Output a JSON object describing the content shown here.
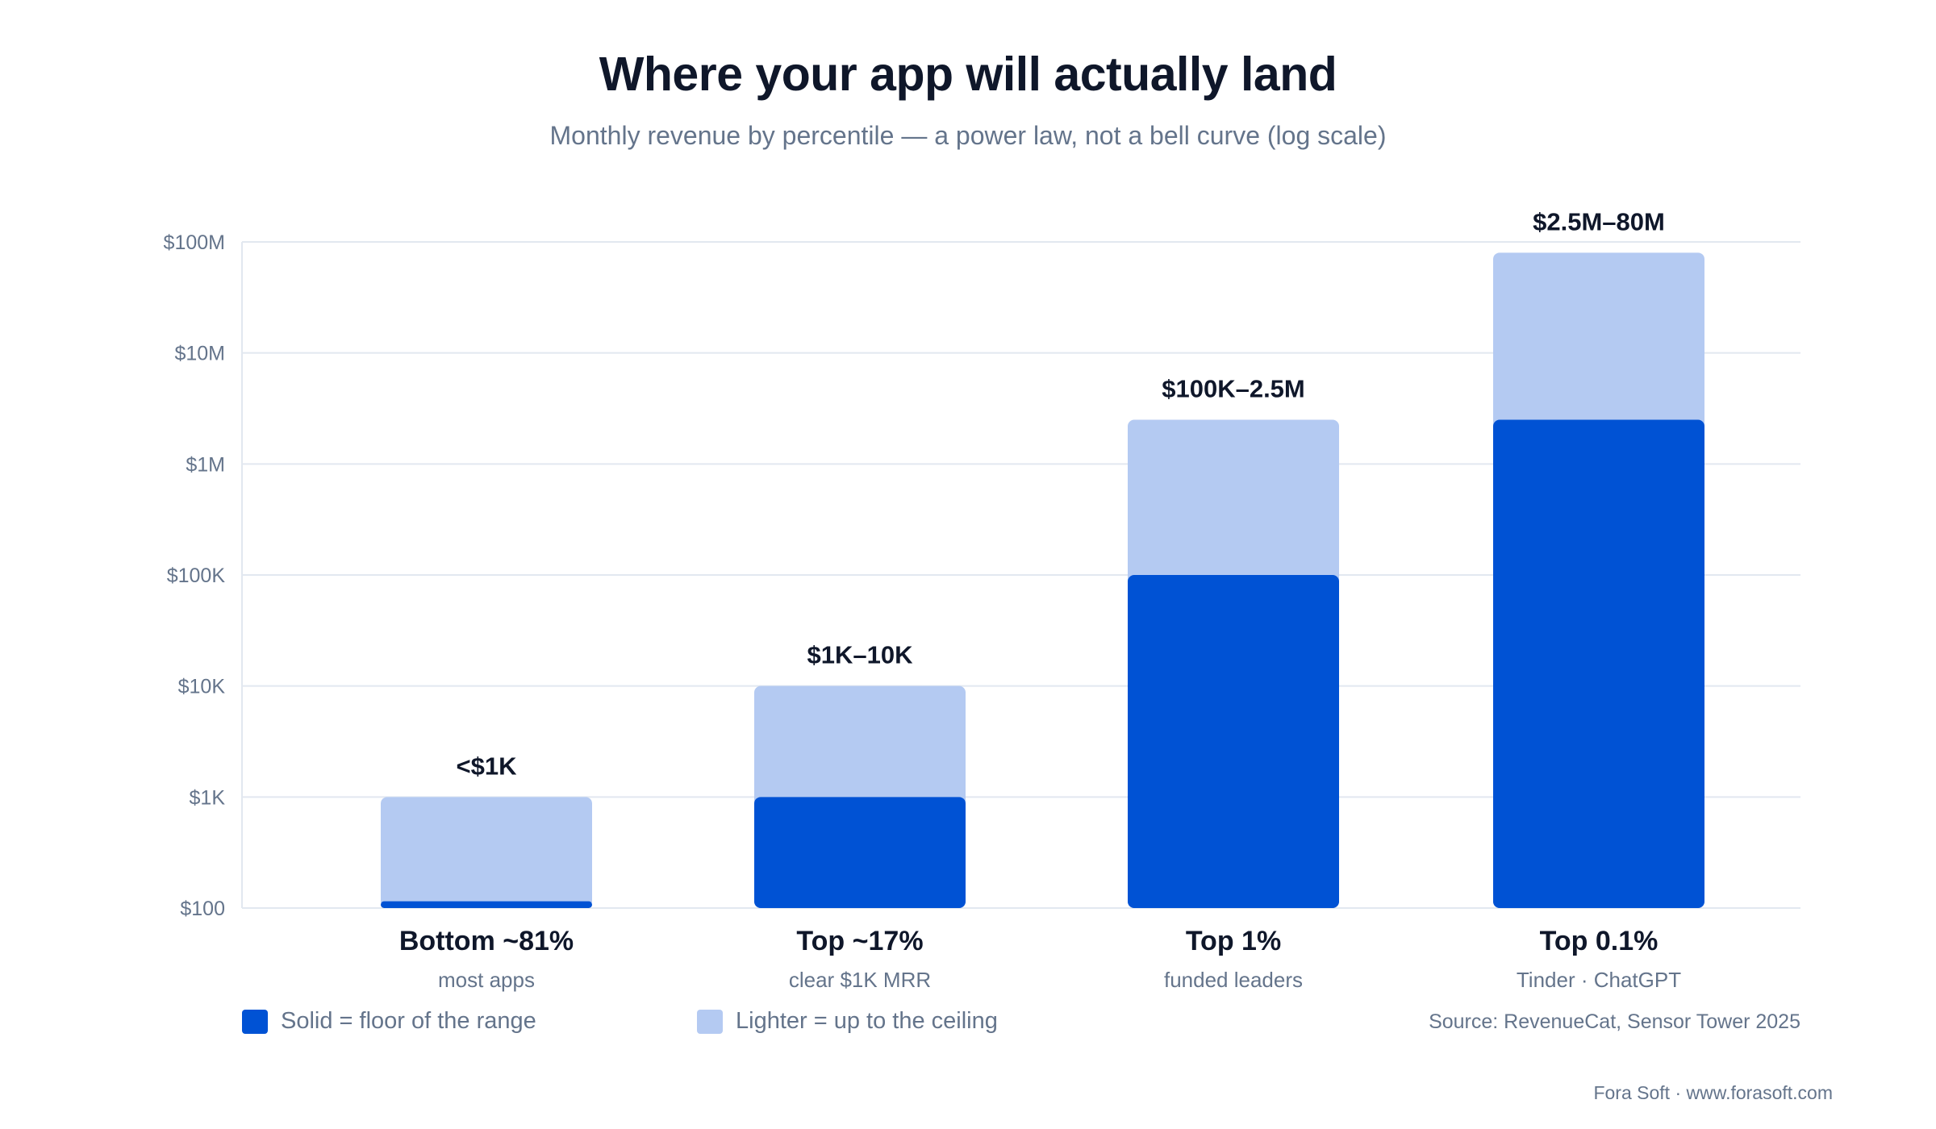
{
  "title": "Where your app will actually land",
  "subtitle": "Monthly revenue by percentile — a power law, not a bell curve (log scale)",
  "chart_data": {
    "type": "bar",
    "stacked_range": true,
    "yscale": "log",
    "ylim": [
      100,
      100000000
    ],
    "yticks": [
      100,
      1000,
      10000,
      100000,
      1000000,
      10000000,
      100000000
    ],
    "ytick_labels": [
      "$100",
      "$1K",
      "$10K",
      "$100K",
      "$1M",
      "$10M",
      "$100M"
    ],
    "grid": true,
    "categories": [
      "Bottom ~81%",
      "Top ~17%",
      "Top 1%",
      "Top 0.1%"
    ],
    "category_sublabels": [
      "most apps",
      "clear $1K MRR",
      "funded leaders",
      "Tinder · ChatGPT"
    ],
    "series": [
      {
        "name": "Solid = floor of the range",
        "color": "#0052d4",
        "values": [
          115,
          1000,
          100000,
          2500000
        ]
      },
      {
        "name": "Lighter = up to the ceiling",
        "color": "#b4caf2",
        "values": [
          1000,
          10000,
          2500000,
          80000000
        ]
      }
    ],
    "data_labels": [
      "<$1K",
      "$1K–10K",
      "$100K–2.5M",
      "$2.5M–80M"
    ]
  },
  "legend": {
    "solid_label": "Solid = floor of the range",
    "light_label": "Lighter = up to the ceiling",
    "solid_color": "#0052d4",
    "light_color": "#b4caf2"
  },
  "source": "Source: RevenueCat, Sensor Tower 2025",
  "footer": "Fora Soft · www.forasoft.com"
}
